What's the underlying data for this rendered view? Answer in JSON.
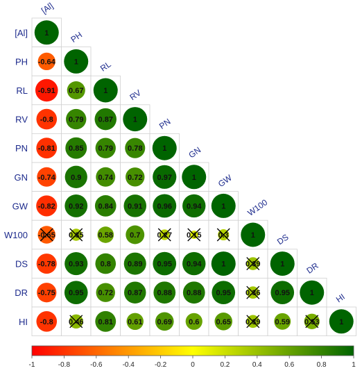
{
  "chart_data": {
    "type": "heatmap",
    "layout": "lower-triangle-circles",
    "variables": [
      "[Al]",
      "PH",
      "RL",
      "RV",
      "PN",
      "GN",
      "GW",
      "W100",
      "DS",
      "DR",
      "HI"
    ],
    "matrix": [
      [
        1
      ],
      [
        -0.64,
        1
      ],
      [
        -0.91,
        0.67,
        1
      ],
      [
        -0.8,
        0.79,
        0.87,
        1
      ],
      [
        -0.81,
        0.85,
        0.79,
        0.78,
        1
      ],
      [
        -0.74,
        0.9,
        0.74,
        0.72,
        0.97,
        1
      ],
      [
        -0.82,
        0.92,
        0.84,
        0.91,
        0.96,
        0.94,
        1
      ],
      [
        -0.65,
        0.35,
        0.58,
        0.7,
        0.27,
        0.15,
        0.3,
        1
      ],
      [
        -0.78,
        0.93,
        0.8,
        0.89,
        0.95,
        0.94,
        1,
        0.39,
        1
      ],
      [
        -0.75,
        0.95,
        0.72,
        0.87,
        0.88,
        0.88,
        0.95,
        0.36,
        0.95,
        1
      ],
      [
        -0.8,
        0.46,
        0.81,
        0.61,
        0.69,
        0.6,
        0.65,
        0.39,
        0.59,
        0.53,
        1
      ]
    ],
    "labels": [
      [
        "1"
      ],
      [
        "-0.64",
        "1"
      ],
      [
        "-0.91",
        "0.67",
        "1"
      ],
      [
        "-0.8",
        "0.79",
        "0.87",
        "1"
      ],
      [
        "-0.81",
        "0.85",
        "0.79",
        "0.78",
        "1"
      ],
      [
        "-0.74",
        "0.9",
        "0.74",
        "0.72",
        "0.97",
        "1"
      ],
      [
        "-0.82",
        "0.92",
        "0.84",
        "0.91",
        "0.96",
        "0.94",
        "1"
      ],
      [
        "-0.65",
        "0.35",
        "0.58",
        "0.7",
        "0.27",
        "0.15",
        "0.3",
        "1"
      ],
      [
        "-0.78",
        "0.93",
        "0.8",
        "0.89",
        "0.95",
        "0.94",
        "1",
        "0.39",
        "1"
      ],
      [
        "-0.75",
        "0.95",
        "0.72",
        "0.87",
        "0.88",
        "0.88",
        "0.95",
        "0.36",
        "0.95",
        "1"
      ],
      [
        "-0.8",
        "0.46",
        "0.81",
        "0.61",
        "0.69",
        "0.6",
        "0.65",
        "0.39",
        "0.59",
        "0.53",
        "1"
      ]
    ],
    "crossed": [
      [
        7,
        0
      ],
      [
        7,
        1
      ],
      [
        7,
        4
      ],
      [
        7,
        5
      ],
      [
        7,
        6
      ],
      [
        8,
        7
      ],
      [
        9,
        7
      ],
      [
        10,
        1
      ],
      [
        10,
        7
      ],
      [
        10,
        9
      ]
    ],
    "color_scale": {
      "range": [
        -1,
        1
      ],
      "stops": [
        "#ff0000",
        "#ffff00",
        "#006400"
      ],
      "ticks": [
        "-1",
        "-0.8",
        "-0.6",
        "-0.4",
        "-0.2",
        "0",
        "0.2",
        "0.4",
        "0.6",
        "0.8",
        "1"
      ]
    },
    "legend": "bottom"
  }
}
